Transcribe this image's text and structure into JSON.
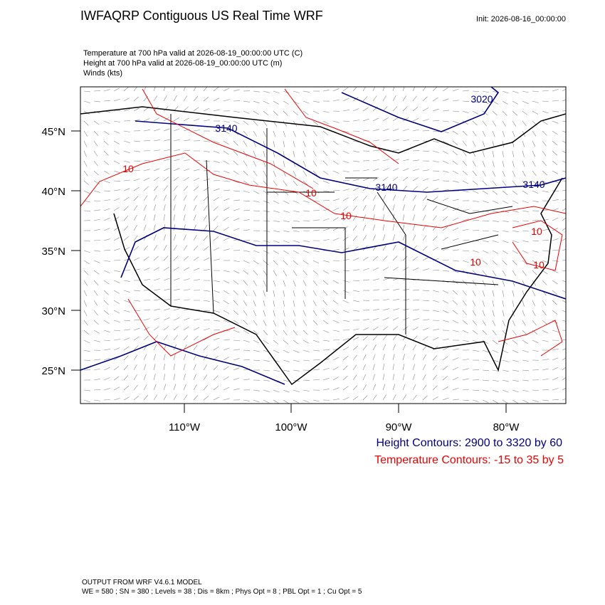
{
  "header": {
    "title": "IWFAQRP Contiguous US Real Time WRF",
    "init": "Init: 2026-08-16_00:00:00"
  },
  "subtitles": [
    "Temperature at 700 hPa valid at 2026-08-19_00:00:00 UTC   (C)",
    "Height at 700 hPa valid at 2026-08-19_00:00:00 UTC   (m)",
    "Winds   (kts)"
  ],
  "map": {
    "lat_labels": [
      "45°N",
      "40°N",
      "35°N",
      "30°N",
      "25°N"
    ],
    "lon_labels": [
      "110°W",
      "100°W",
      "90°W",
      "80°W"
    ],
    "height_labels": [
      "3020",
      "3140",
      "3140",
      "3140"
    ],
    "temperature_labels": [
      "10",
      "10",
      "10",
      "10",
      "10",
      "10"
    ]
  },
  "legend": {
    "height": "Height Contours: 2900 to 3320 by 60",
    "temperature": "Temperature Contours: -15 to 35 by 5"
  },
  "footer": [
    "OUTPUT FROM WRF V4.6.1 MODEL",
    "WE = 580 ; SN = 380 ; Levels = 38 ; Dis = 8km ; Phys Opt = 8 ; PBL Opt = 1 ; Cu Opt = 5"
  ]
}
